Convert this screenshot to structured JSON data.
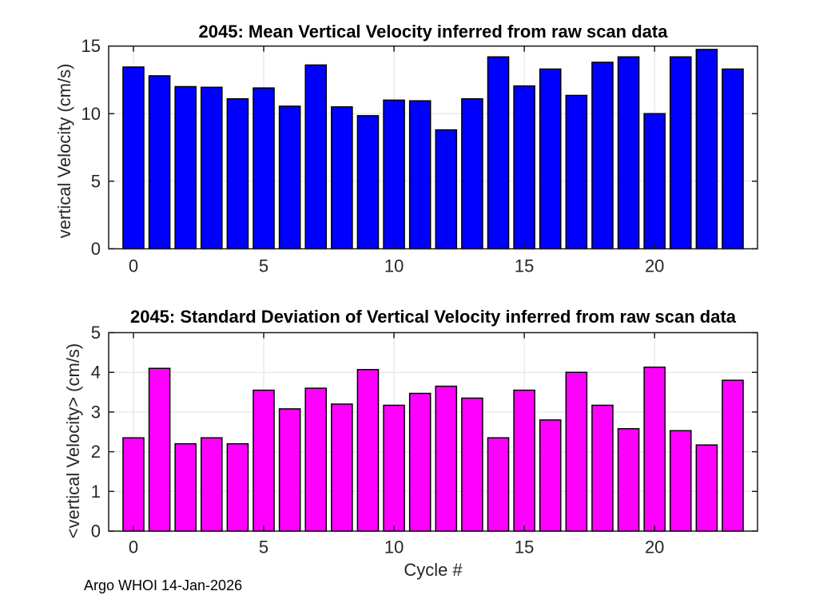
{
  "figure": {
    "footer": "Argo WHOI 14-Jan-2026",
    "background": "#ffffff",
    "colors": {
      "mean_bars": "#0000ff",
      "std_bars": "#ff00ff",
      "bar_edge": "#000000",
      "axis": "#1a1a1a",
      "grid": "#e0e0e0",
      "tick_label": "#262626"
    }
  },
  "chart_data": [
    {
      "type": "bar",
      "title": "2045: Mean Vertical Velocity inferred from raw scan data",
      "ylabel": "vertical Velocity (cm/s)",
      "xlabel": "",
      "legend": "none",
      "grid": true,
      "bar_color": "#0000ff",
      "categories": [
        0,
        1,
        2,
        3,
        4,
        5,
        6,
        7,
        8,
        9,
        10,
        11,
        12,
        13,
        14,
        15,
        16,
        17,
        18,
        19,
        20,
        21,
        22,
        23
      ],
      "values": [
        13.45,
        12.8,
        12.0,
        11.95,
        11.1,
        11.9,
        10.55,
        13.6,
        10.5,
        9.85,
        11.0,
        10.95,
        8.8,
        11.1,
        14.2,
        12.05,
        13.3,
        11.35,
        13.8,
        14.2,
        10.0,
        14.2,
        14.75,
        13.3
      ],
      "ylim": [
        0,
        15
      ],
      "yticks": [
        0,
        5,
        10,
        15
      ],
      "xticks": [
        0,
        5,
        10,
        15,
        20
      ],
      "xlim": [
        -0.95,
        23.95
      ]
    },
    {
      "type": "bar",
      "title": "2045: Standard Deviation of Vertical Velocity inferred from raw scan data",
      "ylabel": "<vertical Velocity> (cm/s)",
      "xlabel": "Cycle #",
      "legend": "none",
      "grid": true,
      "bar_color": "#ff00ff",
      "categories": [
        0,
        1,
        2,
        3,
        4,
        5,
        6,
        7,
        8,
        9,
        10,
        11,
        12,
        13,
        14,
        15,
        16,
        17,
        18,
        19,
        20,
        21,
        22,
        23
      ],
      "values": [
        2.35,
        4.1,
        2.2,
        2.35,
        2.2,
        3.55,
        3.08,
        3.6,
        3.2,
        4.07,
        3.17,
        3.47,
        3.65,
        3.35,
        2.35,
        3.55,
        2.8,
        4.0,
        3.17,
        2.58,
        4.13,
        2.53,
        2.17,
        3.8
      ],
      "ylim": [
        0,
        5
      ],
      "yticks": [
        0,
        1,
        2,
        3,
        4,
        5
      ],
      "xticks": [
        0,
        5,
        10,
        15,
        20
      ],
      "xlim": [
        -0.95,
        23.95
      ]
    }
  ]
}
